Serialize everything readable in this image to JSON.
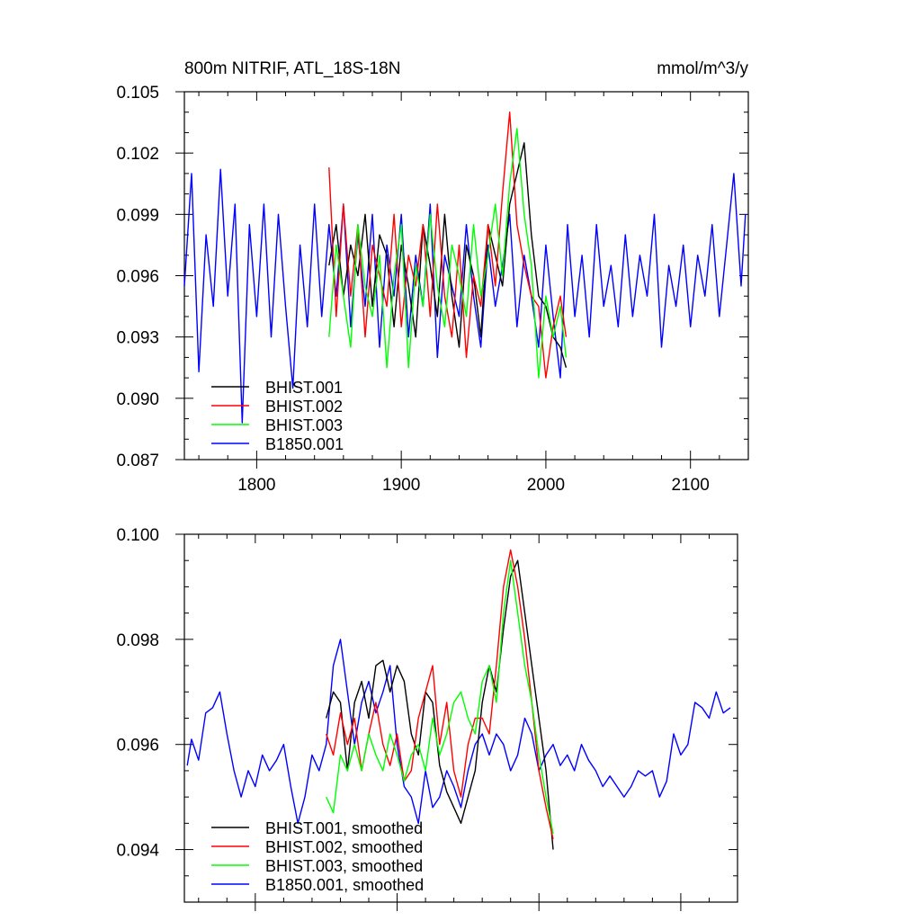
{
  "chart_data": [
    {
      "type": "line",
      "title_left": "800m NITRIF, ATL_18S-18N",
      "title_right": "mmol/m^3/y",
      "xlabel": "",
      "ylabel": "",
      "xlim": [
        1750,
        2140
      ],
      "ylim": [
        0.087,
        0.105
      ],
      "xticks": [
        1800,
        1900,
        2000,
        2100
      ],
      "xtick_labels": [
        "1800",
        "1900",
        "2000",
        "2100"
      ],
      "yticks": [
        0.087,
        0.09,
        0.093,
        0.096,
        0.099,
        0.102,
        0.105
      ],
      "ytick_labels": [
        "0.087",
        "0.090",
        "0.093",
        "0.096",
        "0.099",
        "0.102",
        "0.105"
      ],
      "legend_position": "bottom-left",
      "series": [
        {
          "name": "BHIST.001",
          "color": "#000000",
          "x": [
            1850,
            1855,
            1860,
            1865,
            1870,
            1875,
            1880,
            1885,
            1890,
            1895,
            1900,
            1905,
            1910,
            1915,
            1920,
            1925,
            1930,
            1935,
            1940,
            1945,
            1950,
            1955,
            1960,
            1965,
            1970,
            1975,
            1980,
            1985,
            1990,
            1995,
            2000,
            2005,
            2010,
            2014
          ],
          "values": [
            0.0965,
            0.0985,
            0.095,
            0.0975,
            0.096,
            0.099,
            0.0945,
            0.098,
            0.097,
            0.0935,
            0.0975,
            0.0955,
            0.093,
            0.0985,
            0.0965,
            0.094,
            0.099,
            0.095,
            0.0925,
            0.0975,
            0.096,
            0.093,
            0.0985,
            0.097,
            0.0955,
            0.0995,
            0.101,
            0.1025,
            0.098,
            0.095,
            0.0945,
            0.093,
            0.0925,
            0.0915
          ]
        },
        {
          "name": "BHIST.002",
          "color": "#ff0000",
          "x": [
            1850,
            1855,
            1860,
            1865,
            1870,
            1875,
            1880,
            1885,
            1890,
            1895,
            1900,
            1905,
            1910,
            1915,
            1920,
            1925,
            1930,
            1935,
            1940,
            1945,
            1950,
            1955,
            1960,
            1965,
            1970,
            1975,
            1980,
            1985,
            1990,
            1995,
            2000,
            2005,
            2010,
            2014
          ],
          "values": [
            0.1013,
            0.094,
            0.0995,
            0.095,
            0.0985,
            0.093,
            0.0975,
            0.096,
            0.0945,
            0.099,
            0.0935,
            0.097,
            0.0955,
            0.0985,
            0.094,
            0.0995,
            0.095,
            0.093,
            0.0975,
            0.092,
            0.096,
            0.0945,
            0.0985,
            0.0955,
            0.1,
            0.104,
            0.0985,
            0.0965,
            0.095,
            0.0945,
            0.091,
            0.0935,
            0.095,
            0.093
          ]
        },
        {
          "name": "BHIST.003",
          "color": "#00ff00",
          "x": [
            1850,
            1855,
            1860,
            1865,
            1870,
            1875,
            1880,
            1885,
            1890,
            1895,
            1900,
            1905,
            1910,
            1915,
            1920,
            1925,
            1930,
            1935,
            1940,
            1945,
            1950,
            1955,
            1960,
            1965,
            1970,
            1975,
            1980,
            1985,
            1990,
            1995,
            2000,
            2005,
            2010,
            2014
          ],
          "values": [
            0.093,
            0.0975,
            0.095,
            0.0925,
            0.0985,
            0.0955,
            0.094,
            0.097,
            0.0915,
            0.096,
            0.0985,
            0.0915,
            0.0965,
            0.0945,
            0.099,
            0.0955,
            0.0935,
            0.0975,
            0.096,
            0.094,
            0.0985,
            0.095,
            0.097,
            0.0995,
            0.096,
            0.1005,
            0.1032,
            0.099,
            0.0965,
            0.091,
            0.095,
            0.093,
            0.0945,
            0.092
          ]
        },
        {
          "name": "B1850.001",
          "color": "#0000ff",
          "x": [
            1750,
            1755,
            1760,
            1765,
            1770,
            1775,
            1780,
            1785,
            1790,
            1795,
            1800,
            1805,
            1810,
            1815,
            1820,
            1825,
            1830,
            1835,
            1840,
            1845,
            1850,
            1855,
            1860,
            1865,
            1870,
            1875,
            1880,
            1885,
            1890,
            1895,
            1900,
            1905,
            1910,
            1915,
            1920,
            1925,
            1930,
            1935,
            1940,
            1945,
            1950,
            1955,
            1960,
            1965,
            1970,
            1975,
            1980,
            1985,
            1990,
            1995,
            2000,
            2005,
            2010,
            2015,
            2020,
            2025,
            2030,
            2035,
            2040,
            2045,
            2050,
            2055,
            2060,
            2065,
            2070,
            2075,
            2080,
            2085,
            2090,
            2095,
            2100,
            2105,
            2110,
            2115,
            2120,
            2125,
            2130,
            2135,
            2138
          ],
          "values": [
            0.0955,
            0.101,
            0.0913,
            0.098,
            0.0945,
            0.1012,
            0.095,
            0.0995,
            0.0888,
            0.0985,
            0.094,
            0.0995,
            0.093,
            0.099,
            0.0945,
            0.0905,
            0.0975,
            0.0935,
            0.0995,
            0.094,
            0.0985,
            0.095,
            0.0995,
            0.0935,
            0.098,
            0.0945,
            0.099,
            0.0925,
            0.0975,
            0.095,
            0.099,
            0.093,
            0.097,
            0.0945,
            0.0995,
            0.092,
            0.097,
            0.0955,
            0.094,
            0.0985,
            0.095,
            0.0925,
            0.0975,
            0.0945,
            0.0965,
            0.099,
            0.0935,
            0.097,
            0.095,
            0.0925,
            0.0975,
            0.094,
            0.091,
            0.0985,
            0.094,
            0.097,
            0.093,
            0.0985,
            0.0945,
            0.0965,
            0.0935,
            0.098,
            0.094,
            0.097,
            0.095,
            0.099,
            0.0925,
            0.0965,
            0.0945,
            0.0975,
            0.0935,
            0.097,
            0.095,
            0.0985,
            0.094,
            0.0975,
            0.101,
            0.0955,
            0.099
          ]
        }
      ]
    },
    {
      "type": "line",
      "xlabel": "",
      "ylabel": "",
      "xlim": [
        1750,
        2140
      ],
      "ylim": [
        0.093,
        0.1
      ],
      "yticks": [
        0.094,
        0.096,
        0.098,
        0.1
      ],
      "ytick_labels": [
        "0.094",
        "0.096",
        "0.098",
        "0.100"
      ],
      "legend_position": "bottom-left",
      "series": [
        {
          "name": "BHIST.001, smoothed",
          "color": "#000000",
          "x": [
            1850,
            1855,
            1860,
            1865,
            1870,
            1875,
            1880,
            1885,
            1890,
            1895,
            1900,
            1905,
            1910,
            1915,
            1920,
            1925,
            1930,
            1935,
            1940,
            1945,
            1950,
            1955,
            1960,
            1965,
            1970,
            1975,
            1980,
            1985,
            1990,
            1995,
            2000,
            2005,
            2010
          ],
          "values": [
            0.0965,
            0.097,
            0.0968,
            0.0955,
            0.0968,
            0.0972,
            0.0965,
            0.0975,
            0.0976,
            0.097,
            0.0975,
            0.0972,
            0.0962,
            0.0958,
            0.097,
            0.0968,
            0.0956,
            0.0951,
            0.0948,
            0.0945,
            0.095,
            0.0955,
            0.0968,
            0.0975,
            0.097,
            0.0982,
            0.0992,
            0.0995,
            0.0985,
            0.0975,
            0.0965,
            0.0955,
            0.094
          ]
        },
        {
          "name": "BHIST.002, smoothed",
          "color": "#ff0000",
          "x": [
            1850,
            1855,
            1860,
            1865,
            1870,
            1875,
            1880,
            1885,
            1890,
            1895,
            1900,
            1905,
            1910,
            1915,
            1920,
            1925,
            1930,
            1935,
            1940,
            1945,
            1950,
            1955,
            1960,
            1965,
            1970,
            1975,
            1980,
            1985,
            1990,
            1995,
            2000,
            2005,
            2010
          ],
          "values": [
            0.0962,
            0.0958,
            0.0966,
            0.096,
            0.0965,
            0.0955,
            0.0962,
            0.0968,
            0.096,
            0.0956,
            0.0962,
            0.0953,
            0.0955,
            0.0965,
            0.097,
            0.0975,
            0.096,
            0.0968,
            0.0955,
            0.095,
            0.096,
            0.0965,
            0.0965,
            0.0962,
            0.0975,
            0.099,
            0.0997,
            0.099,
            0.098,
            0.0968,
            0.0955,
            0.0948,
            0.0942
          ]
        },
        {
          "name": "BHIST.003, smoothed",
          "color": "#00ff00",
          "x": [
            1850,
            1855,
            1860,
            1865,
            1870,
            1875,
            1880,
            1885,
            1890,
            1895,
            1900,
            1905,
            1910,
            1915,
            1920,
            1925,
            1930,
            1935,
            1940,
            1945,
            1950,
            1955,
            1960,
            1965,
            1970,
            1975,
            1980,
            1985,
            1990,
            1995,
            2000,
            2005,
            2010
          ],
          "values": [
            0.095,
            0.0947,
            0.0958,
            0.0955,
            0.096,
            0.0955,
            0.0962,
            0.0958,
            0.0955,
            0.0962,
            0.0958,
            0.0953,
            0.0958,
            0.096,
            0.0955,
            0.0965,
            0.0958,
            0.0962,
            0.0968,
            0.097,
            0.0965,
            0.0962,
            0.0972,
            0.0975,
            0.0968,
            0.0985,
            0.0995,
            0.0985,
            0.0975,
            0.0968,
            0.0958,
            0.095,
            0.0943
          ]
        },
        {
          "name": "B1850.001, smoothed",
          "color": "#0000ff",
          "x": [
            1752,
            1755,
            1760,
            1765,
            1770,
            1775,
            1780,
            1785,
            1790,
            1795,
            1800,
            1805,
            1810,
            1815,
            1820,
            1825,
            1830,
            1835,
            1840,
            1845,
            1850,
            1855,
            1860,
            1865,
            1870,
            1875,
            1880,
            1885,
            1890,
            1895,
            1900,
            1905,
            1910,
            1915,
            1920,
            1925,
            1930,
            1935,
            1940,
            1945,
            1950,
            1955,
            1960,
            1965,
            1970,
            1975,
            1980,
            1985,
            1990,
            1995,
            2000,
            2005,
            2010,
            2015,
            2020,
            2025,
            2030,
            2035,
            2040,
            2045,
            2050,
            2055,
            2060,
            2065,
            2070,
            2075,
            2080,
            2085,
            2090,
            2095,
            2100,
            2105,
            2110,
            2115,
            2120,
            2125,
            2130,
            2135
          ],
          "values": [
            0.0956,
            0.0961,
            0.0957,
            0.0966,
            0.0967,
            0.097,
            0.0962,
            0.0955,
            0.095,
            0.0955,
            0.0952,
            0.0958,
            0.0955,
            0.0957,
            0.096,
            0.0952,
            0.0945,
            0.095,
            0.0958,
            0.0955,
            0.096,
            0.0975,
            0.098,
            0.097,
            0.096,
            0.0968,
            0.0972,
            0.0966,
            0.097,
            0.0975,
            0.096,
            0.0952,
            0.095,
            0.0945,
            0.0955,
            0.0948,
            0.095,
            0.0955,
            0.0952,
            0.0948,
            0.0955,
            0.096,
            0.0962,
            0.0958,
            0.0962,
            0.096,
            0.0955,
            0.0958,
            0.0965,
            0.0962,
            0.0955,
            0.0958,
            0.096,
            0.0956,
            0.0958,
            0.0955,
            0.096,
            0.0957,
            0.0955,
            0.0952,
            0.0954,
            0.0952,
            0.095,
            0.0952,
            0.0955,
            0.0954,
            0.0955,
            0.095,
            0.0953,
            0.0962,
            0.0958,
            0.096,
            0.0968,
            0.0967,
            0.0965,
            0.097,
            0.0966,
            0.0967
          ]
        }
      ]
    }
  ]
}
